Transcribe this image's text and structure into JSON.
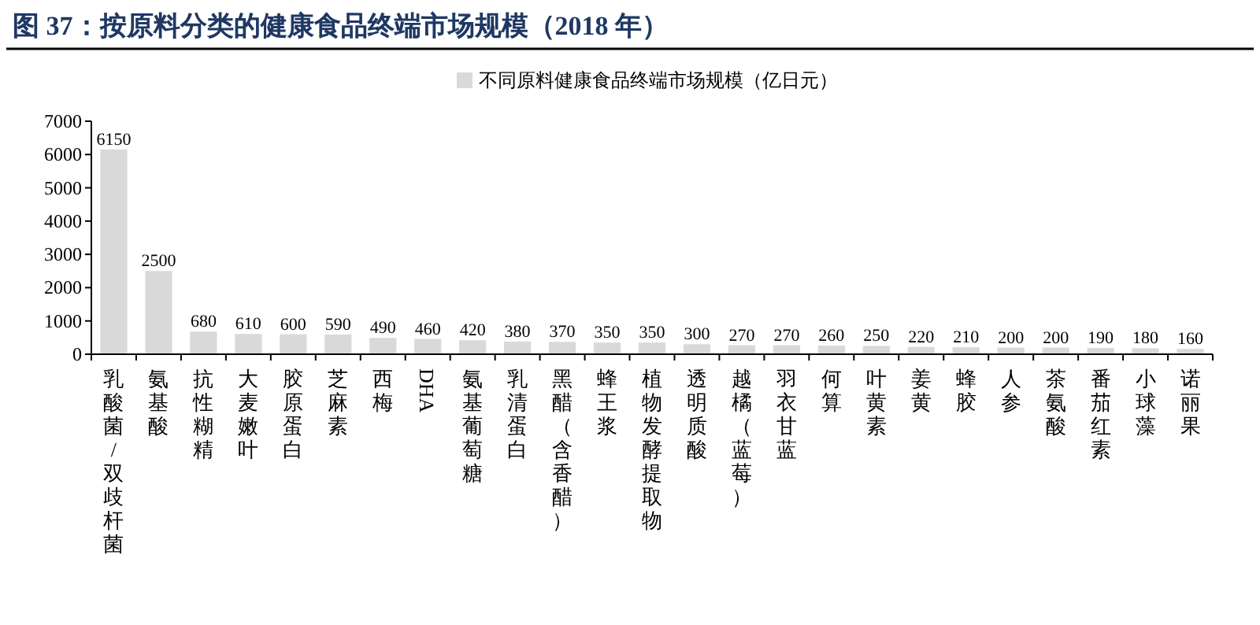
{
  "chart_data": {
    "type": "bar",
    "title": "图 37：按原料分类的健康食品终端市场规模（2018 年）",
    "categories": [
      "乳酸菌/双歧杆菌",
      "氨基酸",
      "抗性糊精",
      "大麦嫩叶",
      "胶原蛋白",
      "芝麻素",
      "西梅",
      "DHA",
      "氨基葡萄糖",
      "乳清蛋白",
      "黑醋（含香醋）",
      "蜂王浆",
      "植物发酵提取物",
      "透明质酸",
      "越橘（蓝莓）",
      "羽衣甘蓝",
      "何算",
      "叶黄素",
      "姜黄",
      "蜂胶",
      "人参",
      "茶氨酸",
      "番茄红素",
      "小球藻",
      "诺丽果"
    ],
    "series": [
      {
        "name": "不同原料健康食品终端市场规模（亿日元）",
        "color": "#d9d9d9",
        "values": [
          6150,
          2500,
          680,
          610,
          600,
          590,
          490,
          460,
          420,
          380,
          370,
          350,
          350,
          300,
          270,
          270,
          260,
          250,
          220,
          210,
          200,
          200,
          190,
          180,
          160
        ]
      }
    ],
    "ylim": [
      0,
      7000
    ],
    "yticks": [
      0,
      1000,
      2000,
      3000,
      4000,
      5000,
      6000,
      7000
    ],
    "data_labels": true,
    "legend": "top right",
    "grid": false
  }
}
